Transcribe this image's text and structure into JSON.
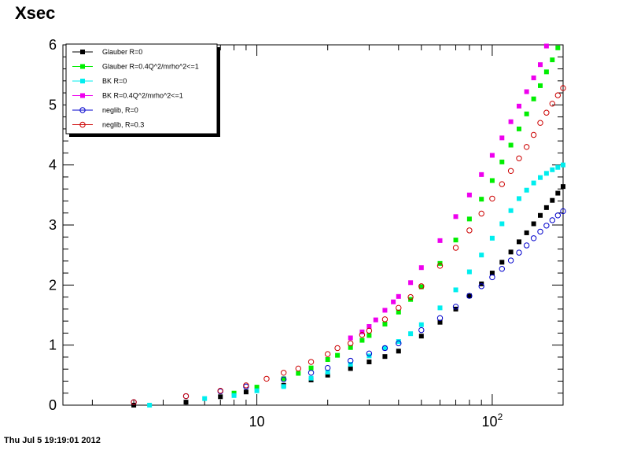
{
  "title": "Xsec",
  "footer_timestamp": "Thu Jul  5 19:19:01 2012",
  "chart_data": {
    "type": "scatter",
    "title": "Xsec",
    "x_scale": "log",
    "xlim": [
      1.5,
      200
    ],
    "ylim": [
      0,
      6
    ],
    "grid": false,
    "legend_position": "top-left",
    "y_ticks": [
      "0",
      "1",
      "2",
      "3",
      "4",
      "5",
      "6"
    ],
    "x_tick_labels": [
      {
        "value": 10,
        "base": "10",
        "exp": ""
      },
      {
        "value": 100,
        "base": "10",
        "exp": "2"
      }
    ],
    "series": [
      {
        "name": "Glauber R=0",
        "color": "#000000",
        "marker": "filled-square",
        "x": [
          3,
          5,
          7,
          9,
          13,
          17,
          20,
          25,
          30,
          35,
          40,
          50,
          60,
          70,
          80,
          90,
          100,
          110,
          120,
          130,
          140,
          150,
          160,
          170,
          180,
          190,
          200
        ],
        "y": [
          0.0,
          0.05,
          0.14,
          0.22,
          0.33,
          0.42,
          0.5,
          0.61,
          0.72,
          0.81,
          0.9,
          1.15,
          1.38,
          1.6,
          1.82,
          2.02,
          2.2,
          2.38,
          2.55,
          2.72,
          2.87,
          3.02,
          3.16,
          3.29,
          3.41,
          3.53,
          3.64
        ]
      },
      {
        "name": "Glauber R=0.4Q^2/mrho^2<=1",
        "color": "#00ee00",
        "marker": "filled-square",
        "x": [
          8,
          10,
          13,
          15,
          17,
          20,
          22,
          25,
          28,
          30,
          35,
          40,
          45,
          50,
          60,
          70,
          80,
          90,
          100,
          110,
          120,
          130,
          140,
          150,
          160,
          170,
          180,
          190
        ],
        "y": [
          0.2,
          0.3,
          0.44,
          0.53,
          0.62,
          0.76,
          0.83,
          0.96,
          1.08,
          1.16,
          1.35,
          1.55,
          1.76,
          1.97,
          2.36,
          2.75,
          3.1,
          3.43,
          3.74,
          4.05,
          4.33,
          4.6,
          4.85,
          5.1,
          5.32,
          5.55,
          5.75,
          5.95
        ]
      },
      {
        "name": "BK R=0",
        "color": "#00eeee",
        "marker": "filled-square",
        "x": [
          3.5,
          6,
          8,
          10,
          13,
          17,
          20,
          25,
          30,
          35,
          40,
          45,
          50,
          60,
          70,
          80,
          90,
          100,
          110,
          120,
          130,
          140,
          150,
          160,
          170,
          180,
          190,
          200
        ],
        "y": [
          0.0,
          0.11,
          0.16,
          0.24,
          0.31,
          0.45,
          0.55,
          0.68,
          0.82,
          0.95,
          1.06,
          1.19,
          1.34,
          1.62,
          1.92,
          2.22,
          2.5,
          2.78,
          3.02,
          3.24,
          3.44,
          3.58,
          3.7,
          3.79,
          3.86,
          3.92,
          3.96,
          4.0
        ]
      },
      {
        "name": "BK R=0.4Q^2/mrho^2<=1",
        "color": "#ee00ee",
        "marker": "filled-square",
        "x": [
          25,
          28,
          30,
          32,
          35,
          38,
          40,
          45,
          50,
          60,
          70,
          80,
          90,
          100,
          110,
          120,
          130,
          140,
          150,
          160,
          170
        ],
        "y": [
          1.12,
          1.22,
          1.31,
          1.42,
          1.58,
          1.72,
          1.81,
          2.04,
          2.29,
          2.74,
          3.14,
          3.5,
          3.84,
          4.16,
          4.45,
          4.72,
          4.98,
          5.22,
          5.45,
          5.67,
          5.98
        ]
      },
      {
        "name": "neglib, R=0",
        "color": "#0000cc",
        "marker": "open-circle",
        "x": [
          3,
          5,
          7,
          9,
          13,
          17,
          20,
          25,
          30,
          35,
          40,
          50,
          60,
          70,
          80,
          90,
          100,
          110,
          120,
          130,
          140,
          150,
          160,
          170,
          180,
          190,
          200
        ],
        "y": [
          0.05,
          0.15,
          0.23,
          0.31,
          0.43,
          0.54,
          0.62,
          0.74,
          0.86,
          0.95,
          1.03,
          1.25,
          1.45,
          1.64,
          1.82,
          1.98,
          2.13,
          2.27,
          2.41,
          2.54,
          2.66,
          2.78,
          2.89,
          2.99,
          3.08,
          3.16,
          3.23
        ]
      },
      {
        "name": "neglib, R=0.3",
        "color": "#cc0000",
        "marker": "open-circle",
        "x": [
          3,
          5,
          7,
          9,
          11,
          13,
          15,
          17,
          20,
          22,
          25,
          28,
          30,
          35,
          40,
          45,
          50,
          60,
          70,
          80,
          90,
          100,
          110,
          120,
          130,
          140,
          150,
          160,
          170,
          180,
          190,
          200
        ],
        "y": [
          0.05,
          0.15,
          0.24,
          0.33,
          0.44,
          0.54,
          0.61,
          0.72,
          0.85,
          0.95,
          1.03,
          1.17,
          1.24,
          1.43,
          1.62,
          1.8,
          1.98,
          2.32,
          2.62,
          2.91,
          3.19,
          3.44,
          3.68,
          3.9,
          4.11,
          4.3,
          4.5,
          4.7,
          4.87,
          5.02,
          5.16,
          5.28
        ]
      }
    ]
  }
}
